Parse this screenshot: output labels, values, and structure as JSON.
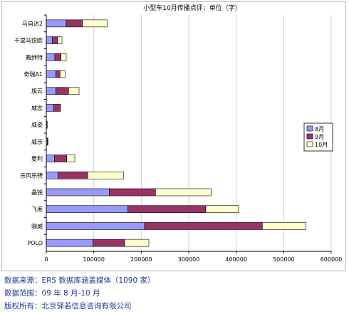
{
  "chart_data": {
    "type": "bar",
    "orientation": "horizontal",
    "stacked": true,
    "title": "小型车10月传播点评：单位（字）",
    "categories": [
      "马自达2",
      "千里马锐欧",
      "雅绅特",
      "奇瑞A1",
      "旗云",
      "威志",
      "威姿",
      "威乐",
      "夏利",
      "乐风乐骋",
      "晶锐",
      "飞度",
      "骊威",
      "POLO"
    ],
    "series": [
      {
        "name": "8月",
        "color": "#9999ff",
        "values": [
          42000,
          13000,
          18000,
          20000,
          20000,
          16000,
          0,
          2000,
          17000,
          25000,
          133000,
          172000,
          207000,
          98000
        ]
      },
      {
        "name": "9月",
        "color": "#993366",
        "values": [
          34000,
          11000,
          13000,
          9000,
          27000,
          14000,
          2000,
          1500,
          26000,
          62000,
          97000,
          164000,
          248000,
          67000
        ]
      },
      {
        "name": "10月",
        "color": "#ffffcc",
        "values": [
          52000,
          9000,
          11000,
          11000,
          22000,
          0,
          0,
          0,
          17000,
          76000,
          117000,
          69000,
          92000,
          51000
        ]
      }
    ],
    "xlim": [
      0,
      600000
    ],
    "xticks": [
      "0",
      "100000",
      "200000",
      "300000",
      "400000",
      "500000",
      "600000"
    ],
    "grid": true,
    "legend_position": "right"
  },
  "notes": {
    "source": "数据来源：ERS 数据库涵盖媒体（1090 家）",
    "range": "数据范围：09 年 8 月-10 月",
    "copyright": "版权所有：北京驿若信息咨询有限公司"
  }
}
